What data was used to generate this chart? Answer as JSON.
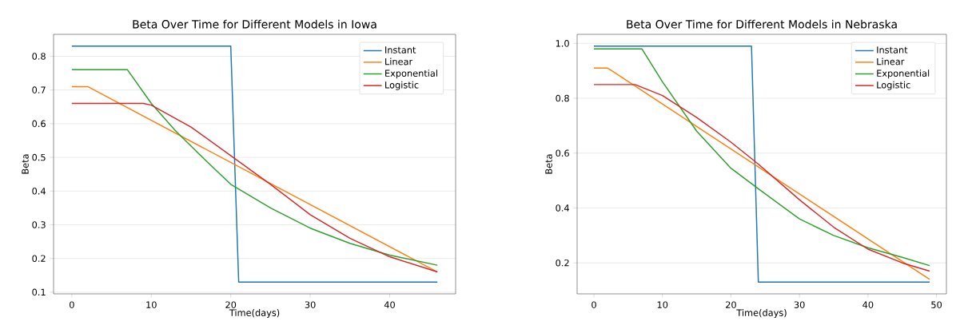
{
  "chart_data": [
    {
      "type": "line",
      "title": "Beta Over Time for Different Models in Iowa",
      "xlabel": "Time(days)",
      "ylabel": "Beta",
      "xlim": [
        -2.3,
        48.3
      ],
      "ylim": [
        0.095,
        0.865
      ],
      "xticks": [
        0,
        10,
        20,
        30,
        40
      ],
      "yticks": [
        0.1,
        0.2,
        0.3,
        0.4,
        0.5,
        0.6,
        0.7,
        0.8
      ],
      "grid": "y",
      "legend": "top right",
      "series": [
        {
          "name": "Instant",
          "color": "#1f77b4",
          "x": [
            0,
            20,
            21,
            46
          ],
          "values": [
            0.83,
            0.83,
            0.13,
            0.13
          ]
        },
        {
          "name": "Linear",
          "color": "#ff7f0e",
          "x": [
            0,
            2,
            46
          ],
          "values": [
            0.71,
            0.71,
            0.16
          ]
        },
        {
          "name": "Exponential",
          "color": "#2ca02c",
          "x": [
            0,
            7,
            10,
            13,
            16,
            20,
            25,
            30,
            35,
            40,
            46
          ],
          "values": [
            0.76,
            0.76,
            0.66,
            0.58,
            0.51,
            0.42,
            0.35,
            0.29,
            0.245,
            0.21,
            0.18
          ]
        },
        {
          "name": "Logistic",
          "color": "#d62728",
          "x": [
            0,
            9,
            10,
            15,
            20,
            25,
            30,
            35,
            40,
            46
          ],
          "values": [
            0.66,
            0.66,
            0.655,
            0.59,
            0.505,
            0.42,
            0.33,
            0.26,
            0.205,
            0.16
          ]
        }
      ]
    },
    {
      "type": "line",
      "title": "Beta Over Time for Different Models in Nebraska",
      "xlabel": "Time(days)",
      "ylabel": "Beta",
      "xlim": [
        -2.45,
        51.45
      ],
      "ylim": [
        0.087,
        1.033
      ],
      "xticks": [
        0,
        10,
        20,
        30,
        40,
        50
      ],
      "yticks": [
        0.2,
        0.4,
        0.6,
        0.8,
        {
          "value": 1,
          "label": "1.0"
        }
      ],
      "grid": "y",
      "legend": "top right",
      "series": [
        {
          "name": "Instant",
          "color": "#1f77b4",
          "x": [
            0,
            23,
            24,
            49
          ],
          "values": [
            0.99,
            0.99,
            0.13,
            0.13
          ]
        },
        {
          "name": "Linear",
          "color": "#ff7f0e",
          "x": [
            0,
            2,
            49
          ],
          "values": [
            0.91,
            0.91,
            0.14
          ]
        },
        {
          "name": "Exponential",
          "color": "#2ca02c",
          "x": [
            0,
            7,
            10,
            15,
            20,
            24,
            30,
            35,
            40,
            45,
            49
          ],
          "values": [
            0.98,
            0.98,
            0.86,
            0.68,
            0.545,
            0.47,
            0.36,
            0.3,
            0.255,
            0.22,
            0.19
          ]
        },
        {
          "name": "Logistic",
          "color": "#d62728",
          "x": [
            0,
            6,
            10,
            15,
            20,
            24,
            30,
            35,
            40,
            45,
            49
          ],
          "values": [
            0.85,
            0.85,
            0.81,
            0.73,
            0.64,
            0.56,
            0.43,
            0.33,
            0.25,
            0.2,
            0.17
          ]
        }
      ]
    }
  ]
}
